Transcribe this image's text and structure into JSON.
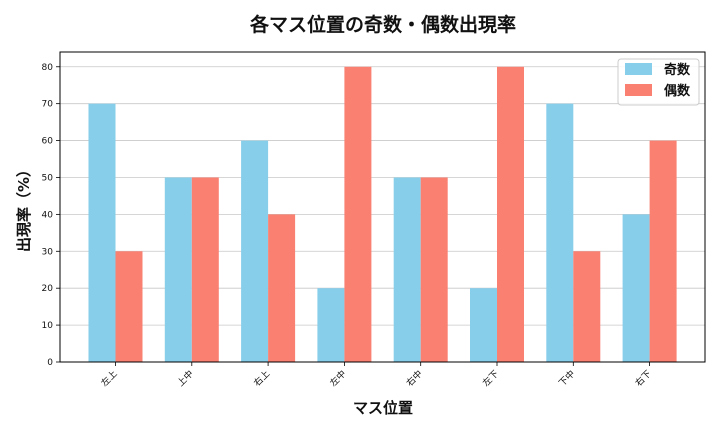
{
  "chart_data": {
    "type": "bar",
    "title": "各マス位置の奇数・偶数出現率",
    "xlabel": "マス位置",
    "ylabel": "出現率（%）",
    "categories": [
      "左上",
      "上中",
      "右上",
      "左中",
      "右中",
      "左下",
      "下中",
      "右下"
    ],
    "series": [
      {
        "name": "奇数",
        "color": "#87CEEB",
        "values": [
          70,
          50,
          60,
          20,
          50,
          20,
          70,
          40
        ]
      },
      {
        "name": "偶数",
        "color": "#FA8072",
        "values": [
          30,
          50,
          40,
          80,
          50,
          80,
          30,
          60
        ]
      }
    ],
    "ylim": [
      0,
      84
    ],
    "yticks": [
      0,
      10,
      20,
      30,
      40,
      50,
      60,
      70,
      80
    ],
    "grid": true,
    "legend_position": "top-right"
  }
}
